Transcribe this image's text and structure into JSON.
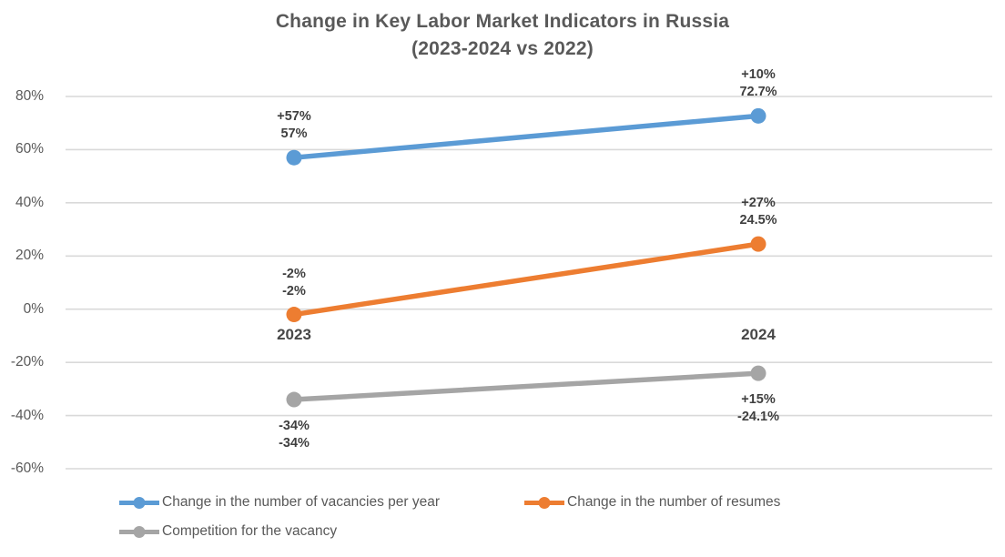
{
  "chart_data": {
    "type": "line",
    "title_line1": "Change in Key Labor Market Indicators in Russia",
    "title_line2": "(2023-2024 vs 2022)",
    "xlabel": "",
    "ylabel": "",
    "categories": [
      "2023",
      "2024"
    ],
    "series": [
      {
        "name": "Change in the number of vacancies per year",
        "color": "#5B9BD5",
        "values": [
          57,
          72.7
        ],
        "labels": [
          [
            "+57%",
            "57%"
          ],
          [
            "+10%",
            "72.7%"
          ]
        ],
        "label_position": "above"
      },
      {
        "name": "Change in the number of resumes",
        "color": "#ED7D31",
        "values": [
          -2,
          24.5
        ],
        "labels": [
          [
            "-2%",
            "-2%"
          ],
          [
            "+27%",
            "24.5%"
          ]
        ],
        "label_position": "above"
      },
      {
        "name": "Competition for the vacancy",
        "color": "#A5A5A5",
        "values": [
          -34,
          -24.1
        ],
        "labels": [
          [
            "-34%",
            "-34%"
          ],
          [
            "+15%",
            "-24.1%"
          ]
        ],
        "label_position": "below"
      }
    ],
    "y_axis": {
      "ticks": [
        "80%",
        "60%",
        "40%",
        "20%",
        "0%",
        "-20%",
        "-40%",
        "-60%"
      ],
      "tick_values": [
        80,
        60,
        40,
        20,
        0,
        -20,
        -40,
        -60
      ],
      "min": -60,
      "max": 80
    },
    "ylim": [
      -60,
      80
    ],
    "grid": true,
    "legend_position": "bottom",
    "colors": {
      "grid": "#D9D9D9",
      "title": "#595959",
      "axis_text": "#595959",
      "annotation_text": "#3f3f3f",
      "background": "#ffffff"
    }
  }
}
